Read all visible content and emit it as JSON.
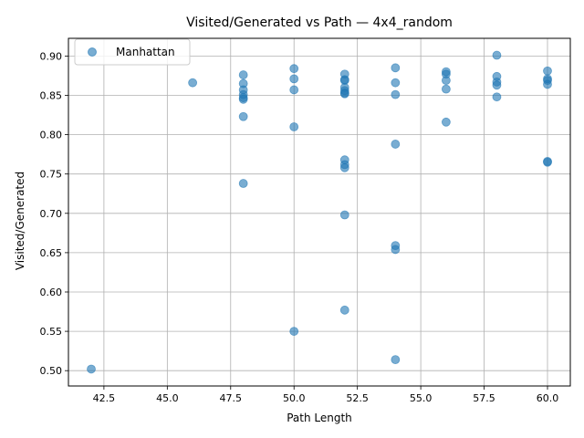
{
  "chart_data": {
    "type": "scatter",
    "title": "Visited/Generated vs Path — 4x4_random",
    "xlabel": "Path Length",
    "ylabel": "Visited/Generated",
    "xlim": [
      41.1,
      60.9
    ],
    "ylim": [
      0.4805,
      0.9225
    ],
    "xticks": [
      42.5,
      45.0,
      47.5,
      50.0,
      52.5,
      55.0,
      57.5,
      60.0
    ],
    "xtick_labels": [
      "42.5",
      "45.0",
      "47.5",
      "50.0",
      "52.5",
      "55.0",
      "57.5",
      "60.0"
    ],
    "yticks": [
      0.5,
      0.55,
      0.6,
      0.65,
      0.7,
      0.75,
      0.8,
      0.85,
      0.9
    ],
    "ytick_labels": [
      "0.50",
      "0.55",
      "0.60",
      "0.65",
      "0.70",
      "0.75",
      "0.80",
      "0.85",
      "0.90"
    ],
    "grid": true,
    "legend_position": "top-left",
    "series": [
      {
        "name": "Manhattan",
        "color": "#1f77b4",
        "points": [
          [
            42,
            0.502
          ],
          [
            46,
            0.866
          ],
          [
            48,
            0.876
          ],
          [
            48,
            0.865
          ],
          [
            48,
            0.857
          ],
          [
            48,
            0.851
          ],
          [
            48,
            0.847
          ],
          [
            48,
            0.845
          ],
          [
            48,
            0.823
          ],
          [
            48,
            0.738
          ],
          [
            50,
            0.884
          ],
          [
            50,
            0.871
          ],
          [
            50,
            0.857
          ],
          [
            50,
            0.81
          ],
          [
            50,
            0.55
          ],
          [
            52,
            0.877
          ],
          [
            52,
            0.87
          ],
          [
            52,
            0.869
          ],
          [
            52,
            0.86
          ],
          [
            52,
            0.856
          ],
          [
            52,
            0.853
          ],
          [
            52,
            0.852
          ],
          [
            52,
            0.768
          ],
          [
            52,
            0.762
          ],
          [
            52,
            0.758
          ],
          [
            52,
            0.698
          ],
          [
            52,
            0.577
          ],
          [
            54,
            0.885
          ],
          [
            54,
            0.866
          ],
          [
            54,
            0.851
          ],
          [
            54,
            0.788
          ],
          [
            54,
            0.659
          ],
          [
            54,
            0.654
          ],
          [
            54,
            0.514
          ],
          [
            56,
            0.88
          ],
          [
            56,
            0.877
          ],
          [
            56,
            0.869
          ],
          [
            56,
            0.858
          ],
          [
            56,
            0.816
          ],
          [
            58,
            0.901
          ],
          [
            58,
            0.874
          ],
          [
            58,
            0.867
          ],
          [
            58,
            0.863
          ],
          [
            58,
            0.848
          ],
          [
            60,
            0.881
          ],
          [
            60,
            0.871
          ],
          [
            60,
            0.869
          ],
          [
            60,
            0.864
          ],
          [
            60,
            0.766
          ],
          [
            60,
            0.765
          ]
        ]
      }
    ]
  }
}
